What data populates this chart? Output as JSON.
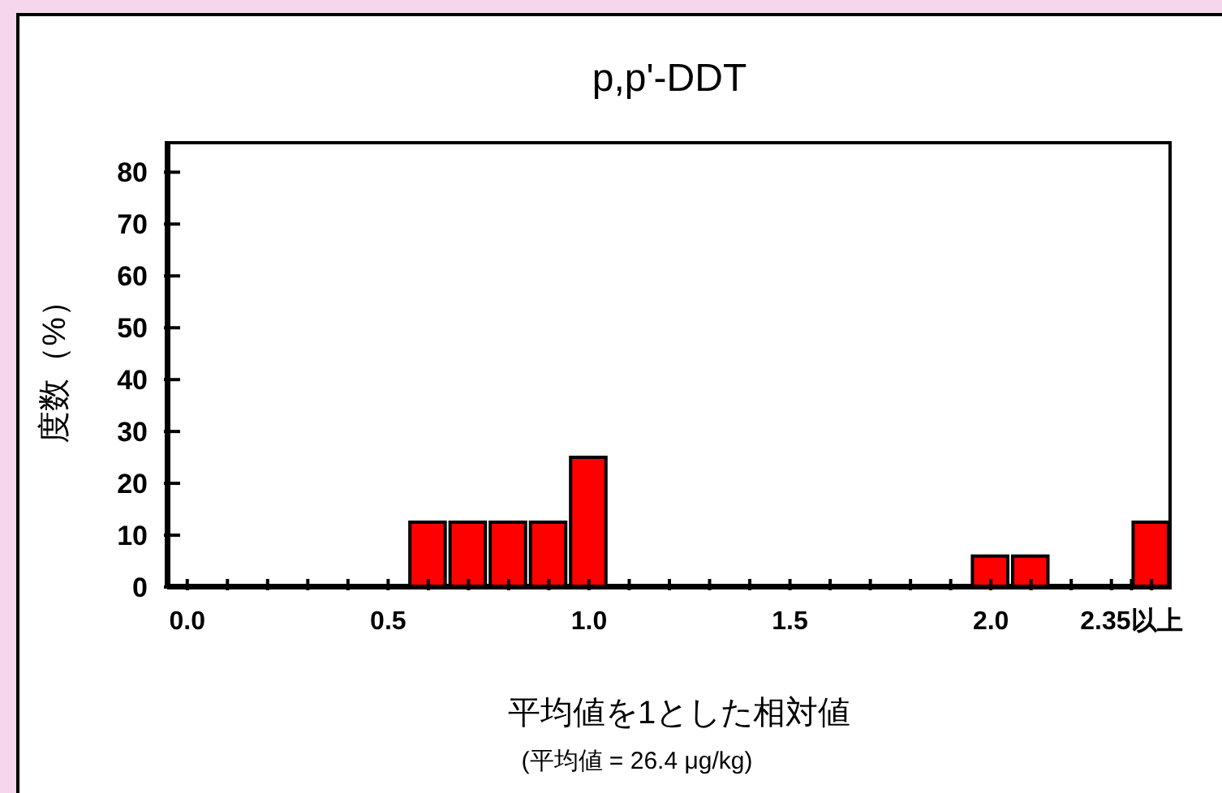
{
  "chart_data": {
    "type": "histogram",
    "title": "p,p'-DDT",
    "xlabel": "平均値を1とした相対値",
    "ylabel": "度数（%）",
    "annotations": [
      "(平均値 = 26.4 μg/kg)"
    ],
    "bins": [
      -0.05,
      0.05,
      0.15,
      0.25,
      0.35,
      0.45,
      0.55,
      0.65,
      0.75,
      0.85,
      0.95,
      1.05,
      1.15,
      1.25,
      1.35,
      1.45,
      1.55,
      1.65,
      1.75,
      1.85,
      1.95,
      2.05,
      2.15,
      2.25,
      2.35,
      2.45
    ],
    "values": [
      0,
      0,
      0,
      0,
      0,
      0,
      12.5,
      12.5,
      12.5,
      12.5,
      25,
      0,
      0,
      0,
      0,
      0,
      0,
      0,
      0,
      0,
      6,
      6,
      0,
      0,
      12.5
    ],
    "color": "#ff0000",
    "xlim": [
      -0.05,
      2.45
    ],
    "xticks": [
      {
        "value": 0,
        "label": "0.0"
      },
      {
        "value": 0.1,
        "label": null
      },
      {
        "value": 0.2,
        "label": null
      },
      {
        "value": 0.3,
        "label": null
      },
      {
        "value": 0.4,
        "label": null
      },
      {
        "value": 0.5,
        "label": "0.5"
      },
      {
        "value": 0.6,
        "label": null
      },
      {
        "value": 0.7,
        "label": null
      },
      {
        "value": 0.8,
        "label": null
      },
      {
        "value": 0.9,
        "label": null
      },
      {
        "value": 1,
        "label": "1.0"
      },
      {
        "value": 1.1,
        "label": null
      },
      {
        "value": 1.2,
        "label": null
      },
      {
        "value": 1.3,
        "label": null
      },
      {
        "value": 1.4,
        "label": null
      },
      1.5,
      {
        "value": 1.6,
        "label": null
      },
      {
        "value": 1.7,
        "label": null
      },
      {
        "value": 1.8,
        "label": null
      },
      {
        "value": 1.9,
        "label": null
      },
      {
        "value": 2,
        "label": "2.0"
      },
      {
        "value": 2.1,
        "label": null
      },
      {
        "value": 2.2,
        "label": null
      },
      {
        "value": 2.3,
        "label": null
      },
      {
        "value": 2.35,
        "label": "2.35以上"
      },
      {
        "value": 2.4,
        "label": null
      }
    ],
    "ylim": [
      0,
      86
    ],
    "yticks": [
      0,
      10,
      20,
      30,
      40,
      50,
      60,
      70,
      80
    ]
  }
}
